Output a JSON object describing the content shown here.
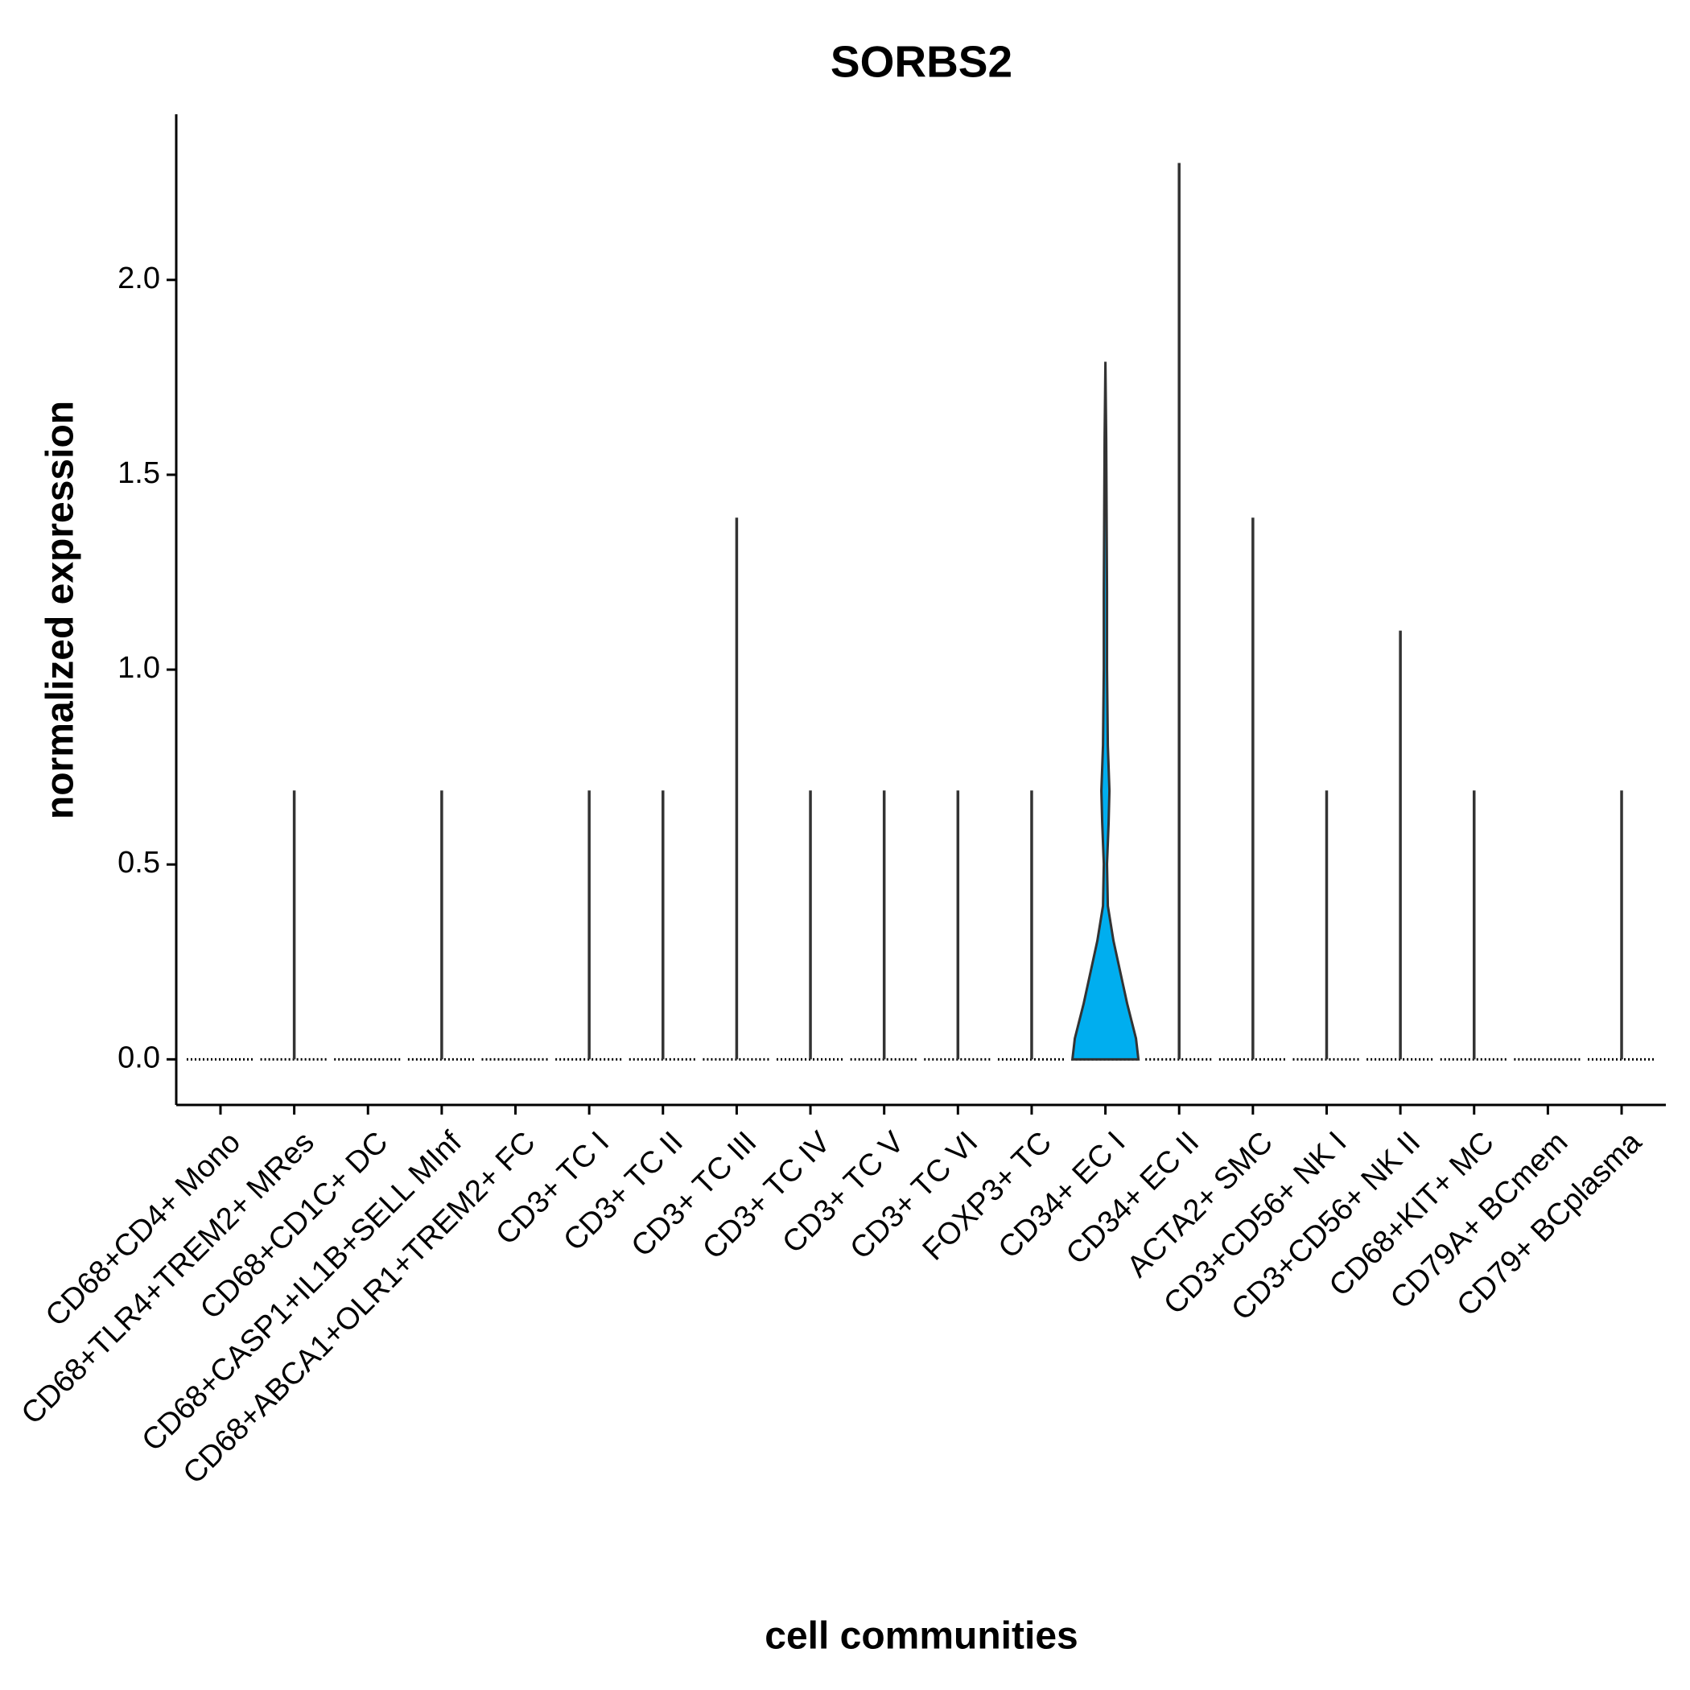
{
  "chart_data": {
    "type": "violin",
    "title": "SORBS2",
    "x_label": "cell communities",
    "y_label": "normalized expression",
    "categories": [
      "CD68+CD4+ Mono",
      "CD68+TLR4+TREM2+ MRes",
      "CD68+CD1C+ DC",
      "CD68+CASP1+IL1B+SELL MInf",
      "CD68+ABCA1+OLR1+TREM2+ FC",
      "CD3+ TC I",
      "CD3+ TC II",
      "CD3+ TC III",
      "CD3+ TC IV",
      "CD3+ TC V",
      "CD3+ TC VI",
      "FOXP3+ TC",
      "CD34+ EC I",
      "CD34+ EC II",
      "ACTA2+ SMC",
      "CD3+CD56+ NK I",
      "CD3+CD56+ NK II",
      "CD68+KIT+ MC",
      "CD79A+ BCmem",
      "CD79+ BCplasma"
    ],
    "values": [
      0,
      0.69,
      0,
      0.69,
      0,
      0.69,
      0.69,
      1.39,
      0.69,
      0.69,
      0.69,
      0.69,
      1.79,
      2.3,
      1.39,
      0.69,
      1.1,
      0.69,
      0,
      0.69
    ],
    "color": "#00AEEF",
    "filled_category": "CD34+ EC I",
    "ylim": [
      -0.117,
      2.425
    ],
    "yticks": [
      {
        "value": 0,
        "label": "0.0"
      },
      0.5,
      {
        "value": 1,
        "label": "1.0"
      },
      1.5,
      {
        "value": 2,
        "label": "2.0"
      }
    ]
  }
}
